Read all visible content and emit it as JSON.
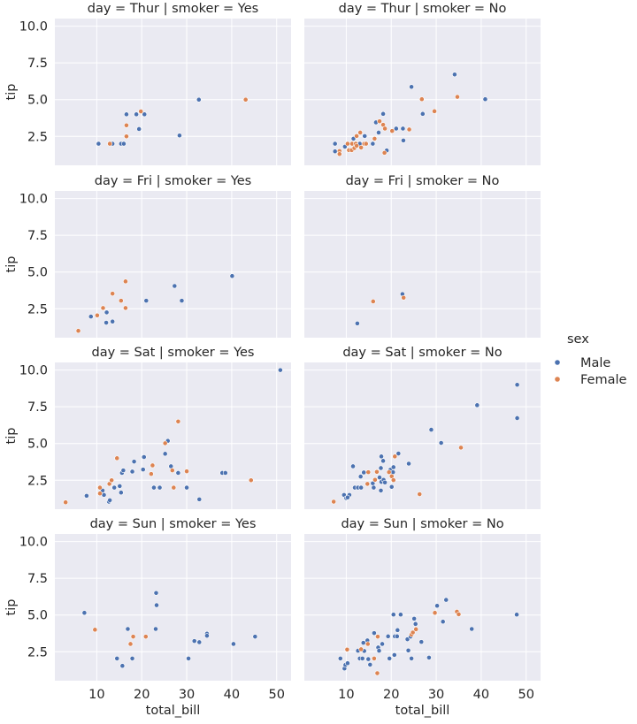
{
  "chart_data": {
    "type": "scatter",
    "layout": "facet-grid",
    "rows_variable": "day",
    "cols_variable": "smoker",
    "xlabel": "total_bill",
    "ylabel": "tip",
    "xlim": [
      0.68,
      53.2
    ],
    "ylim": [
      0.53,
      10.52
    ],
    "xticks": [
      10,
      20,
      30,
      40,
      50
    ],
    "yticks": [
      2.5,
      5.0,
      7.5,
      10.0
    ],
    "ytick_labels": [
      "2.5",
      "5.0",
      "7.5",
      "10.0"
    ],
    "xtick_labels": [
      "10",
      "20",
      "30",
      "40",
      "50"
    ],
    "grid": true,
    "background": "#eaeaf2",
    "legend": {
      "title": "sex",
      "placement": "right",
      "entries": [
        {
          "name": "Male",
          "color": "#4c72b0"
        },
        {
          "name": "Female",
          "color": "#dd8452"
        }
      ]
    },
    "panels": [
      {
        "title": "day = Thur | smoker = Yes",
        "Male": [
          [
            10.4,
            2.0
          ],
          [
            13.5,
            2.0
          ],
          [
            15.4,
            2.0
          ],
          [
            16.0,
            2.0
          ],
          [
            16.6,
            4.0
          ],
          [
            18.8,
            4.0
          ],
          [
            19.4,
            3.0
          ],
          [
            20.6,
            4.0
          ],
          [
            28.4,
            2.56
          ],
          [
            32.7,
            5.0
          ]
        ],
        "Female": [
          [
            12.9,
            2.0
          ],
          [
            16.6,
            3.25
          ],
          [
            16.6,
            2.5
          ],
          [
            19.8,
            4.2
          ],
          [
            43.1,
            5.0
          ]
        ]
      },
      {
        "title": "day = Thur | smoker = No",
        "Male": [
          [
            7.5,
            2.0
          ],
          [
            7.5,
            1.48
          ],
          [
            9.7,
            1.8
          ],
          [
            11.6,
            2.34
          ],
          [
            13.0,
            2.0
          ],
          [
            14.1,
            2.52
          ],
          [
            15.9,
            2.0
          ],
          [
            16.6,
            3.45
          ],
          [
            17.2,
            2.76
          ],
          [
            18.2,
            4.03
          ],
          [
            19.0,
            1.54
          ],
          [
            21.1,
            3.03
          ],
          [
            22.6,
            3.03
          ],
          [
            22.7,
            2.22
          ],
          [
            24.5,
            5.87
          ],
          [
            27.0,
            4.03
          ],
          [
            34.1,
            6.71
          ],
          [
            40.9,
            5.03
          ]
        ],
        "Female": [
          [
            8.5,
            1.5
          ],
          [
            8.5,
            1.3
          ],
          [
            10.3,
            2.0
          ],
          [
            10.6,
            1.56
          ],
          [
            11.2,
            1.56
          ],
          [
            11.3,
            2.0
          ],
          [
            12.1,
            2.0
          ],
          [
            11.8,
            1.7
          ],
          [
            12.3,
            2.52
          ],
          [
            13.1,
            2.76
          ],
          [
            12.3,
            1.86
          ],
          [
            13.3,
            1.74
          ],
          [
            14.0,
            2.0
          ],
          [
            14.4,
            2.0
          ],
          [
            16.3,
            2.34
          ],
          [
            17.4,
            3.53
          ],
          [
            18.2,
            3.29
          ],
          [
            18.6,
            3.03
          ],
          [
            18.5,
            1.38
          ],
          [
            20.2,
            2.87
          ],
          [
            24.0,
            2.97
          ],
          [
            26.8,
            5.03
          ],
          [
            29.6,
            4.21
          ],
          [
            34.7,
            5.19
          ]
        ]
      },
      {
        "title": "day = Fri | smoker = Yes",
        "Male": [
          [
            8.7,
            1.97
          ],
          [
            12.2,
            2.25
          ],
          [
            12.1,
            1.55
          ],
          [
            13.5,
            1.63
          ],
          [
            21.0,
            3.05
          ],
          [
            27.3,
            4.05
          ],
          [
            28.9,
            3.05
          ],
          [
            40.1,
            4.73
          ]
        ],
        "Female": [
          [
            5.9,
            1.0
          ],
          [
            10.1,
            2.05
          ],
          [
            11.4,
            2.55
          ],
          [
            13.5,
            3.53
          ],
          [
            15.4,
            3.05
          ],
          [
            16.4,
            2.55
          ],
          [
            16.4,
            4.36
          ]
        ]
      },
      {
        "title": "day = Fri | smoker = No",
        "Male": [
          [
            12.46,
            1.5
          ],
          [
            22.49,
            3.5
          ]
        ],
        "Female": [
          [
            15.98,
            3.0
          ],
          [
            22.75,
            3.25
          ]
        ]
      },
      {
        "title": "day = Sat | smoker = Yes",
        "Male": [
          [
            7.74,
            1.44
          ],
          [
            11.3,
            1.8
          ],
          [
            11.6,
            1.5
          ],
          [
            12.7,
            1.04
          ],
          [
            12.9,
            1.14
          ],
          [
            13.9,
            2.0
          ],
          [
            15.1,
            2.1
          ],
          [
            15.4,
            1.66
          ],
          [
            15.6,
            3.0
          ],
          [
            15.9,
            3.17
          ],
          [
            17.9,
            3.09
          ],
          [
            18.3,
            3.77
          ],
          [
            20.3,
            3.23
          ],
          [
            20.5,
            4.08
          ],
          [
            22.7,
            2.0
          ],
          [
            24.0,
            2.0
          ],
          [
            25.2,
            4.3
          ],
          [
            25.8,
            5.18
          ],
          [
            26.5,
            3.45
          ],
          [
            28.1,
            3.0
          ],
          [
            30.0,
            2.0
          ],
          [
            32.8,
            1.2
          ],
          [
            37.9,
            3.0
          ],
          [
            38.6,
            3.0
          ],
          [
            50.81,
            10.0
          ]
        ],
        "Female": [
          [
            3.07,
            1.0
          ],
          [
            10.7,
            2.0
          ],
          [
            10.7,
            1.6
          ],
          [
            12.8,
            2.25
          ],
          [
            13.3,
            2.5
          ],
          [
            14.5,
            4.0
          ],
          [
            22.1,
            2.93
          ],
          [
            22.4,
            3.51
          ],
          [
            25.2,
            5.02
          ],
          [
            26.8,
            3.17
          ],
          [
            27.1,
            2.0
          ],
          [
            28.1,
            6.5
          ],
          [
            30.0,
            3.11
          ],
          [
            44.3,
            2.5
          ]
        ]
      },
      {
        "title": "day = Sat | smoker = No",
        "Male": [
          [
            9.5,
            1.5
          ],
          [
            10.7,
            1.5
          ],
          [
            10.0,
            1.28
          ],
          [
            10.3,
            1.33
          ],
          [
            11.5,
            3.45
          ],
          [
            11.9,
            2.0
          ],
          [
            12.6,
            2.0
          ],
          [
            13.3,
            2.0
          ],
          [
            13.2,
            2.75
          ],
          [
            13.9,
            3.03
          ],
          [
            15.9,
            2.29
          ],
          [
            16.1,
            2.0
          ],
          [
            17.4,
            2.69
          ],
          [
            17.7,
            1.8
          ],
          [
            17.7,
            3.33
          ],
          [
            17.8,
            2.39
          ],
          [
            17.8,
            4.12
          ],
          [
            18.2,
            3.82
          ],
          [
            18.3,
            2.53
          ],
          [
            18.6,
            2.35
          ],
          [
            19.8,
            3.21
          ],
          [
            20.1,
            2.05
          ],
          [
            20.4,
            3.05
          ],
          [
            20.5,
            3.39
          ],
          [
            21.6,
            4.32
          ],
          [
            23.9,
            3.63
          ],
          [
            28.9,
            5.94
          ],
          [
            31.1,
            5.04
          ],
          [
            39.1,
            7.61
          ],
          [
            48.0,
            9.0
          ],
          [
            48.0,
            6.73
          ]
        ],
        "Female": [
          [
            7.2,
            1.04
          ],
          [
            14.7,
            2.25
          ],
          [
            14.9,
            3.05
          ],
          [
            16.4,
            2.53
          ],
          [
            16.8,
            3.07
          ],
          [
            19.5,
            3.05
          ],
          [
            20.1,
            2.77
          ],
          [
            20.5,
            2.51
          ],
          [
            20.8,
            4.12
          ],
          [
            26.3,
            1.55
          ],
          [
            35.5,
            4.72
          ]
        ]
      },
      {
        "title": "day = Sun | smoker = Yes",
        "Male": [
          [
            7.25,
            5.15
          ],
          [
            14.5,
            2.04
          ],
          [
            15.7,
            1.54
          ],
          [
            16.9,
            4.05
          ],
          [
            17.9,
            2.04
          ],
          [
            23.1,
            4.05
          ],
          [
            23.2,
            6.5
          ],
          [
            23.3,
            5.67
          ],
          [
            30.4,
            2.04
          ],
          [
            31.7,
            3.23
          ],
          [
            32.8,
            3.15
          ],
          [
            34.5,
            3.73
          ],
          [
            34.5,
            3.59
          ],
          [
            40.4,
            3.03
          ],
          [
            45.2,
            3.53
          ]
        ],
        "Female": [
          [
            9.6,
            4.0
          ],
          [
            17.5,
            3.03
          ],
          [
            18.1,
            3.53
          ],
          [
            20.9,
            3.53
          ]
        ]
      },
      {
        "title": "day = Sun | smoker = No",
        "Male": [
          [
            8.7,
            2.04
          ],
          [
            9.6,
            1.36
          ],
          [
            9.8,
            1.6
          ],
          [
            10.3,
            1.72
          ],
          [
            12.6,
            2.57
          ],
          [
            13.0,
            2.04
          ],
          [
            13.6,
            2.04
          ],
          [
            13.8,
            3.11
          ],
          [
            14.0,
            2.55
          ],
          [
            14.7,
            3.27
          ],
          [
            14.9,
            2.0
          ],
          [
            15.3,
            1.62
          ],
          [
            16.2,
            3.77
          ],
          [
            17.1,
            2.79
          ],
          [
            17.3,
            2.57
          ],
          [
            18.0,
            3.03
          ],
          [
            19.3,
            3.55
          ],
          [
            19.6,
            2.04
          ],
          [
            20.5,
            5.03
          ],
          [
            20.7,
            2.28
          ],
          [
            20.8,
            3.55
          ],
          [
            21.3,
            3.55
          ],
          [
            21.4,
            3.97
          ],
          [
            22.1,
            5.03
          ],
          [
            23.6,
            3.35
          ],
          [
            23.8,
            2.59
          ],
          [
            24.3,
            3.53
          ],
          [
            24.5,
            2.04
          ],
          [
            25.1,
            4.75
          ],
          [
            25.4,
            4.39
          ],
          [
            26.7,
            3.17
          ],
          [
            28.4,
            2.1
          ],
          [
            30.2,
            5.63
          ],
          [
            31.5,
            4.55
          ],
          [
            32.2,
            6.03
          ],
          [
            37.9,
            4.05
          ],
          [
            47.9,
            5.03
          ]
        ],
        "Female": [
          [
            10.2,
            2.65
          ],
          [
            13.3,
            2.67
          ],
          [
            14.8,
            3.03
          ],
          [
            16.2,
            2.04
          ],
          [
            16.9,
            1.04
          ],
          [
            17.0,
            3.53
          ],
          [
            24.5,
            3.67
          ],
          [
            24.8,
            3.81
          ],
          [
            25.5,
            4.03
          ],
          [
            29.7,
            5.15
          ],
          [
            34.6,
            5.23
          ],
          [
            35.0,
            5.05
          ]
        ]
      }
    ]
  }
}
